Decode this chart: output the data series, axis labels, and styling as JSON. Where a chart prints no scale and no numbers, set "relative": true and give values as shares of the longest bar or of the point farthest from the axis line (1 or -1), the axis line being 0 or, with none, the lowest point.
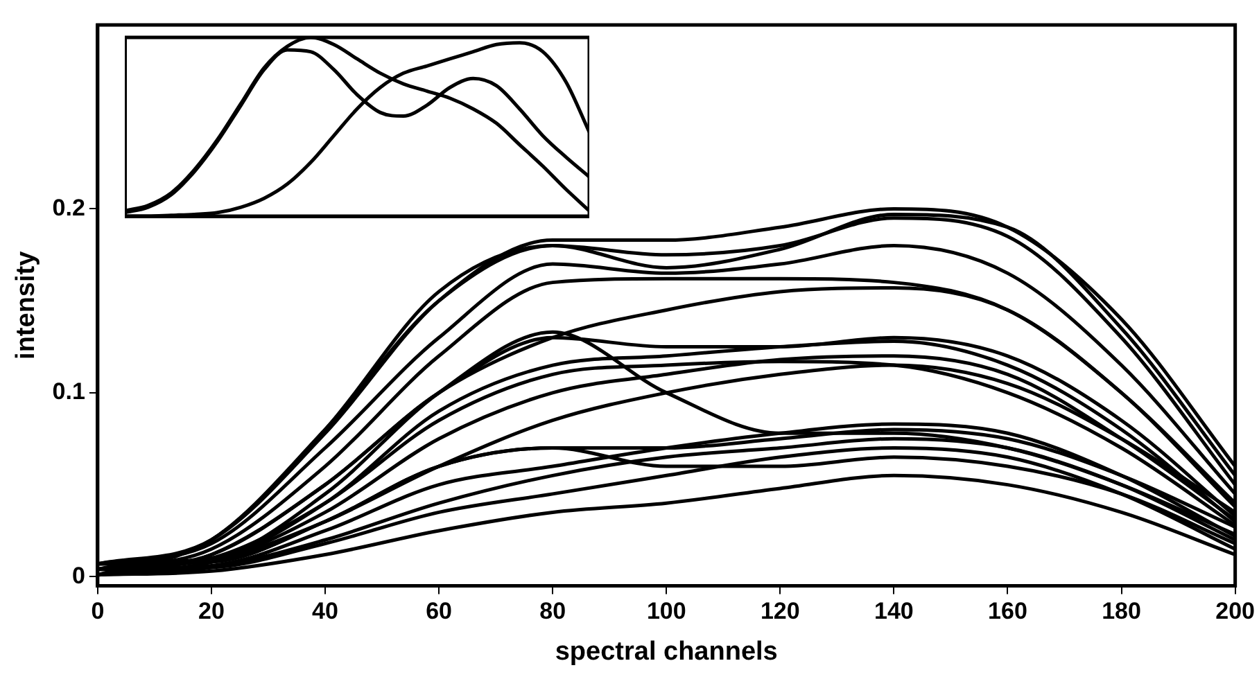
{
  "chart_data": [
    {
      "type": "line",
      "xlabel": "spectral channels",
      "ylabel": "intensity",
      "x": [
        0,
        20,
        40,
        60,
        80,
        100,
        120,
        140,
        160,
        180,
        200
      ],
      "xlim": [
        0,
        200
      ],
      "xticks": [
        0,
        20,
        40,
        60,
        80,
        100,
        120,
        140,
        160,
        180,
        200
      ],
      "ylim": [
        -0.005,
        0.3
      ],
      "yticks": [
        0,
        0.1,
        0.2
      ],
      "grid": false,
      "legend": false,
      "marker": "none",
      "line_style": "solid",
      "series": [
        {
          "color": "#000000",
          "values": [
            0.001,
            0.02,
            0.08,
            0.15,
            0.18,
            0.175,
            0.18,
            0.195,
            0.185,
            0.13,
            0.05
          ]
        },
        {
          "color": "#000000",
          "values": [
            0.004,
            0.02,
            0.08,
            0.155,
            0.18,
            0.168,
            0.178,
            0.197,
            0.19,
            0.135,
            0.055
          ]
        },
        {
          "color": "#000000",
          "values": [
            0.007,
            0.02,
            0.078,
            0.15,
            0.183,
            0.183,
            0.19,
            0.2,
            0.19,
            0.14,
            0.06
          ]
        },
        {
          "color": "#000000",
          "values": [
            0.007,
            0.018,
            0.07,
            0.13,
            0.17,
            0.165,
            0.17,
            0.18,
            0.165,
            0.115,
            0.045
          ]
        },
        {
          "color": "#000000",
          "values": [
            0.004,
            0.015,
            0.06,
            0.12,
            0.16,
            0.162,
            0.162,
            0.16,
            0.145,
            0.1,
            0.04
          ]
        },
        {
          "color": "#000000",
          "values": [
            0.001,
            0.012,
            0.05,
            0.1,
            0.13,
            0.145,
            0.155,
            0.157,
            0.145,
            0.1,
            0.038
          ]
        },
        {
          "color": "#000000",
          "values": [
            0.004,
            0.012,
            0.05,
            0.1,
            0.13,
            0.125,
            0.125,
            0.13,
            0.12,
            0.085,
            0.033
          ]
        },
        {
          "color": "#000000",
          "values": [
            0.007,
            0.01,
            0.045,
            0.1,
            0.133,
            0.1,
            0.078,
            0.078,
            0.07,
            0.05,
            0.023
          ]
        },
        {
          "color": "#000000",
          "values": [
            0.007,
            0.01,
            0.04,
            0.09,
            0.115,
            0.12,
            0.125,
            0.128,
            0.115,
            0.08,
            0.03
          ]
        },
        {
          "color": "#000000",
          "values": [
            0.004,
            0.01,
            0.04,
            0.085,
            0.11,
            0.115,
            0.117,
            0.115,
            0.1,
            0.07,
            0.028
          ]
        },
        {
          "color": "#000000",
          "values": [
            0.001,
            0.008,
            0.035,
            0.075,
            0.1,
            0.11,
            0.118,
            0.12,
            0.11,
            0.075,
            0.031
          ]
        },
        {
          "color": "#000000",
          "values": [
            0.007,
            0.008,
            0.03,
            0.06,
            0.085,
            0.1,
            0.11,
            0.115,
            0.105,
            0.075,
            0.035
          ]
        },
        {
          "color": "#000000",
          "values": [
            0.001,
            0.008,
            0.03,
            0.06,
            0.07,
            0.07,
            0.075,
            0.08,
            0.075,
            0.055,
            0.027
          ]
        },
        {
          "color": "#000000",
          "values": [
            0.004,
            0.006,
            0.025,
            0.05,
            0.06,
            0.07,
            0.078,
            0.083,
            0.078,
            0.055,
            0.022
          ]
        },
        {
          "color": "#000000",
          "values": [
            0.001,
            0.005,
            0.02,
            0.04,
            0.055,
            0.065,
            0.07,
            0.075,
            0.07,
            0.05,
            0.02
          ]
        },
        {
          "color": "#000000",
          "values": [
            0.004,
            0.005,
            0.018,
            0.035,
            0.045,
            0.055,
            0.065,
            0.07,
            0.065,
            0.045,
            0.015
          ]
        },
        {
          "color": "#000000",
          "values": [
            0.001,
            0.003,
            0.012,
            0.025,
            0.035,
            0.04,
            0.048,
            0.055,
            0.05,
            0.035,
            0.012
          ]
        },
        {
          "color": "#000000",
          "values": [
            0.007,
            0.008,
            0.03,
            0.06,
            0.07,
            0.06,
            0.06,
            0.065,
            0.06,
            0.045,
            0.018
          ]
        }
      ]
    },
    {
      "type": "line",
      "relative": true,
      "tick_labels": false,
      "grid": false,
      "legend": false,
      "marker": "none",
      "line_style": "solid",
      "categories": [
        null,
        null,
        null,
        null,
        null,
        null,
        null,
        null,
        null,
        null,
        null,
        null,
        null,
        null,
        null,
        null,
        null,
        null,
        null,
        null,
        null
      ],
      "series": [
        {
          "color": "#000000",
          "values": [
            0.02,
            0.05,
            0.12,
            0.25,
            0.42,
            0.62,
            0.82,
            0.93,
            0.92,
            0.82,
            0.68,
            0.58,
            0.56,
            0.62,
            0.72,
            0.77,
            0.73,
            0.6,
            0.45,
            0.33,
            0.22
          ]
        },
        {
          "color": "#000000",
          "values": [
            0.03,
            0.06,
            0.13,
            0.26,
            0.43,
            0.63,
            0.83,
            0.95,
            1.0,
            0.96,
            0.88,
            0.8,
            0.74,
            0.7,
            0.66,
            0.6,
            0.52,
            0.4,
            0.28,
            0.15,
            0.03
          ]
        },
        {
          "color": "#000000",
          "values": [
            0,
            0,
            0.005,
            0.01,
            0.02,
            0.05,
            0.1,
            0.18,
            0.3,
            0.45,
            0.6,
            0.72,
            0.8,
            0.84,
            0.88,
            0.92,
            0.96,
            0.97,
            0.92,
            0.75,
            0.47
          ]
        }
      ]
    }
  ]
}
